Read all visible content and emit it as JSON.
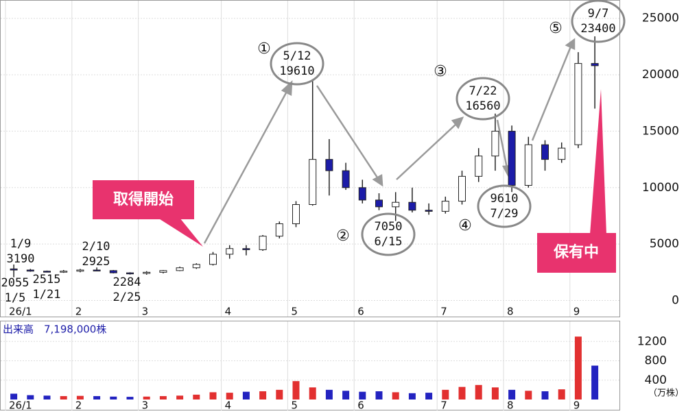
{
  "chart_data": [
    {
      "type": "candlestick",
      "categories": [
        "26/1",
        null,
        null,
        null,
        "2",
        null,
        null,
        null,
        "3",
        null,
        null,
        null,
        null,
        "4",
        null,
        null,
        null,
        "5",
        null,
        null,
        null,
        "6",
        null,
        null,
        null,
        null,
        "7",
        null,
        null,
        null,
        "8",
        null,
        null,
        null,
        "9",
        null
      ],
      "ohlc": [
        [
          2800,
          3190,
          2055,
          2700
        ],
        [
          2700,
          2800,
          2550,
          2600
        ],
        [
          2600,
          2650,
          2515,
          2550
        ],
        [
          2550,
          2700,
          2450,
          2600
        ],
        [
          2600,
          2800,
          2500,
          2700
        ],
        [
          2700,
          2925,
          2600,
          2650
        ],
        [
          2650,
          2700,
          2400,
          2450
        ],
        [
          2450,
          2500,
          2300,
          2400
        ],
        [
          2400,
          2600,
          2284,
          2500
        ],
        [
          2500,
          2700,
          2400,
          2650
        ],
        [
          2650,
          3000,
          2600,
          2900
        ],
        [
          2900,
          3300,
          2800,
          3200
        ],
        [
          3200,
          4300,
          3100,
          4100
        ],
        [
          4100,
          4900,
          3700,
          4600
        ],
        [
          4600,
          4900,
          4000,
          4500
        ],
        [
          4500,
          5800,
          4400,
          5700
        ],
        [
          5700,
          7000,
          5500,
          6800
        ],
        [
          6800,
          8800,
          6500,
          8500
        ],
        [
          8500,
          19610,
          8400,
          12500
        ],
        [
          12500,
          14300,
          9300,
          11500
        ],
        [
          11500,
          12200,
          9800,
          10000
        ],
        [
          10000,
          10700,
          8600,
          8900
        ],
        [
          8900,
          9500,
          8000,
          8300
        ],
        [
          8300,
          9600,
          7050,
          8700
        ],
        [
          8700,
          10000,
          7800,
          8000
        ],
        [
          8000,
          8600,
          7600,
          7900
        ],
        [
          7900,
          9200,
          7700,
          8800
        ],
        [
          8800,
          11500,
          8500,
          11000
        ],
        [
          11000,
          13500,
          10500,
          12800
        ],
        [
          12800,
          16560,
          11500,
          15000
        ],
        [
          15000,
          15500,
          9610,
          10200
        ],
        [
          10200,
          14500,
          10000,
          13800
        ],
        [
          13800,
          14200,
          11500,
          12500
        ],
        [
          12500,
          14000,
          12200,
          13500
        ],
        [
          13800,
          22000,
          13500,
          21000
        ],
        [
          21000,
          23400,
          17000,
          20800
        ]
      ],
      "up_color": "#ffffff",
      "down_color": "#1c1ca8",
      "ylim": [
        -1000,
        26500
      ],
      "yticks": [
        0,
        5000,
        10000,
        15000,
        20000,
        25000
      ],
      "grid": true,
      "annotations": [
        {
          "date": "1/9",
          "price": 3190
        },
        {
          "date": "1/5",
          "price": 2055
        },
        {
          "date": "1/21",
          "price": 2515
        },
        {
          "date": "2/10",
          "price": 2925
        },
        {
          "date": "2/25",
          "price": 2284
        },
        {
          "date": "5/12",
          "price": 19610,
          "marker": "①"
        },
        {
          "date": "6/15",
          "price": 7050,
          "marker": "②"
        },
        {
          "date": "7/22",
          "price": 16560,
          "marker": "③"
        },
        {
          "date": "7/29",
          "price": 9610,
          "marker": "④"
        },
        {
          "date": "9/7",
          "price": 23400,
          "marker": "⑤"
        }
      ],
      "callouts": [
        "取得開始",
        "保有中"
      ]
    },
    {
      "type": "volume",
      "title": "出来高　7,198,000株",
      "y_label": "（万株）",
      "categories": [
        "26/1",
        null,
        null,
        null,
        "2",
        null,
        null,
        null,
        "3",
        null,
        null,
        null,
        null,
        "4",
        null,
        null,
        null,
        "5",
        null,
        null,
        null,
        "6",
        null,
        null,
        null,
        null,
        "7",
        null,
        null,
        null,
        "8",
        null,
        null,
        null,
        "9",
        null
      ],
      "values": [
        120,
        90,
        80,
        70,
        75,
        70,
        60,
        55,
        60,
        70,
        80,
        100,
        150,
        140,
        160,
        170,
        200,
        380,
        250,
        200,
        180,
        160,
        170,
        150,
        130,
        140,
        200,
        260,
        300,
        250,
        200,
        180,
        170,
        210,
        1300,
        700
      ],
      "up_color": "#e23030",
      "down_color": "#2323c0",
      "ylim": [
        0,
        1600
      ],
      "yticks": [
        400,
        800,
        1200
      ],
      "grid": true
    }
  ]
}
